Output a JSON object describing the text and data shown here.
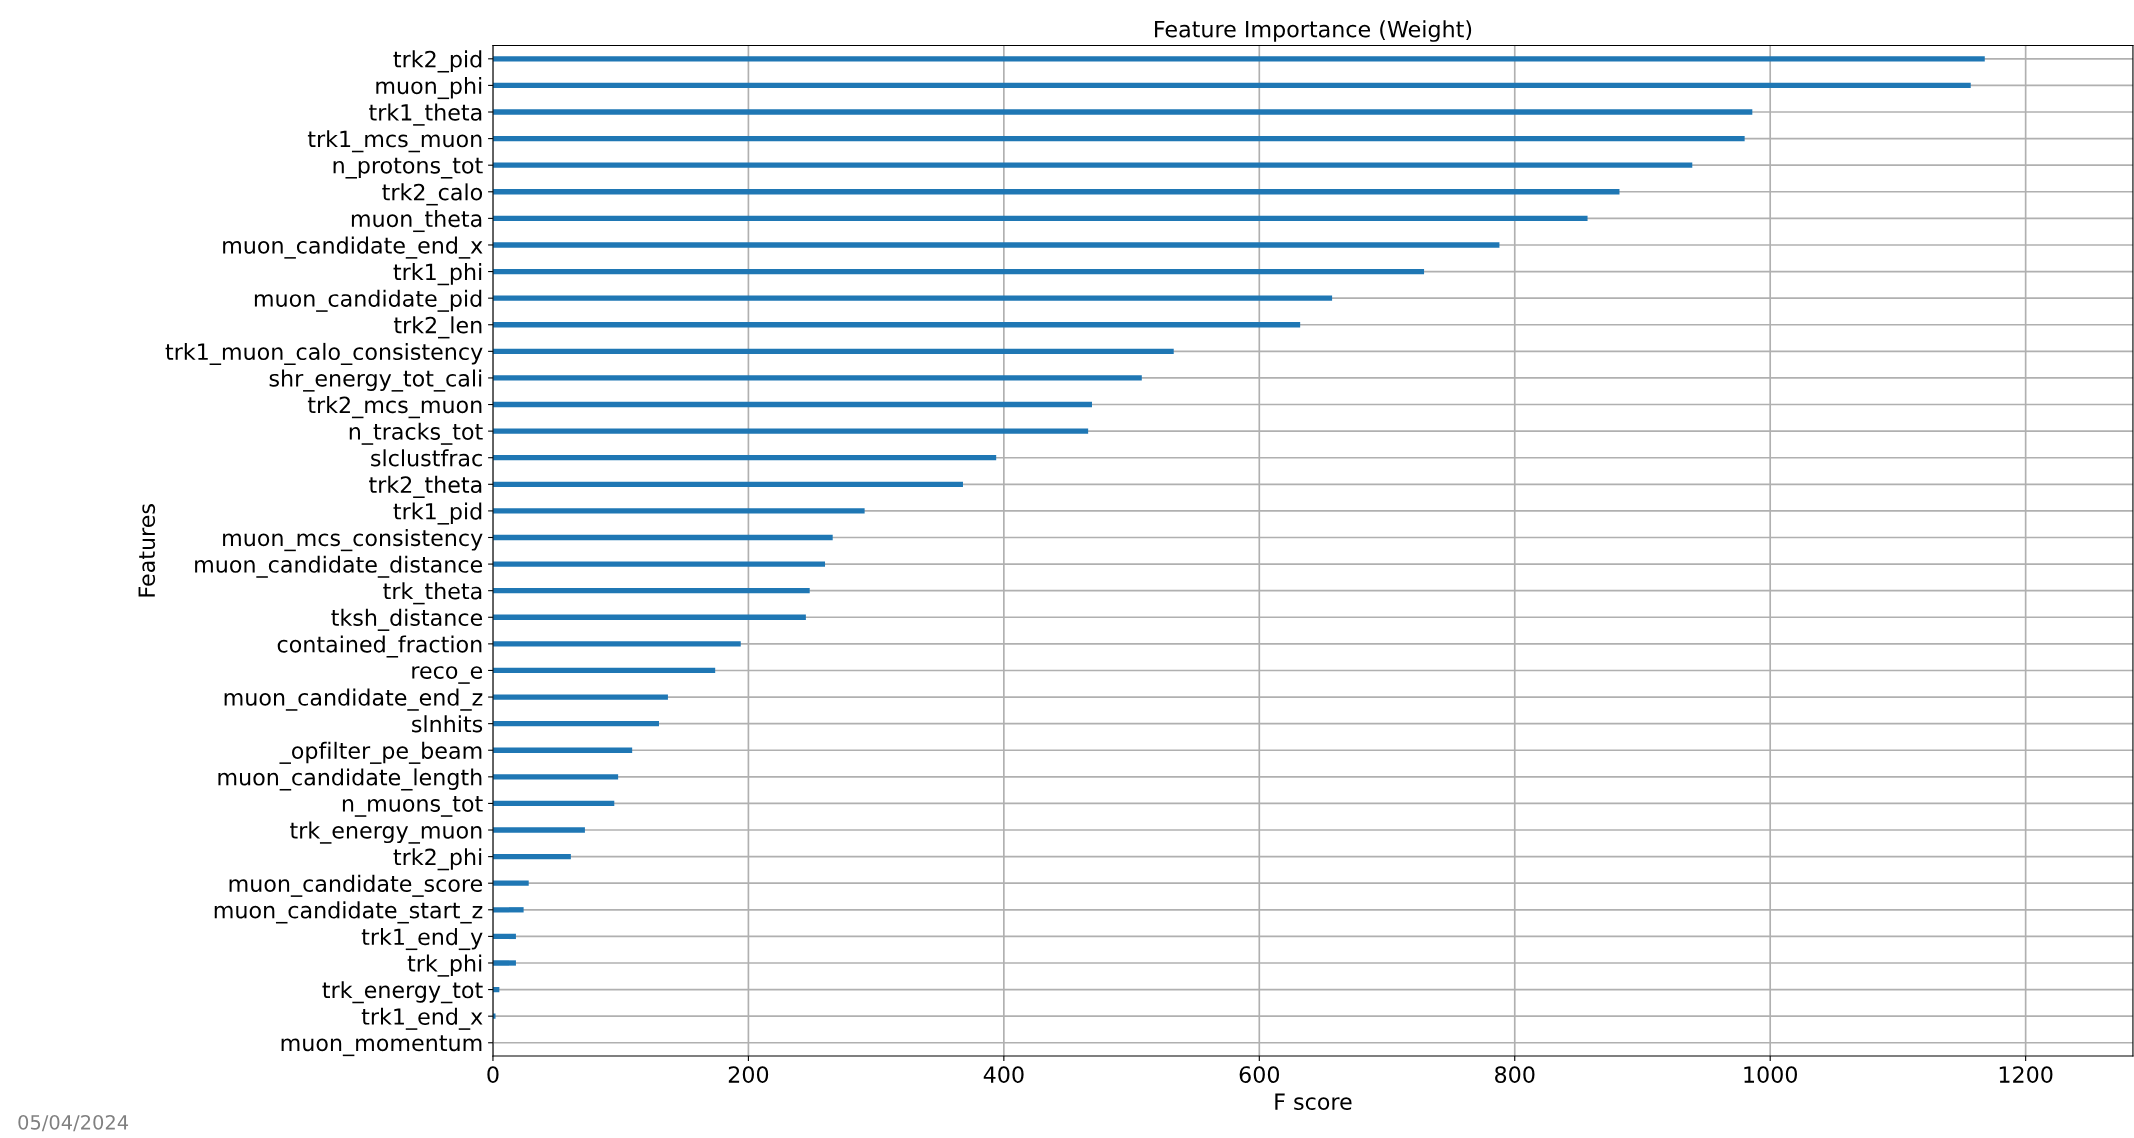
{
  "chart_data": {
    "type": "bar",
    "orientation": "horizontal",
    "title": "Feature Importance (Weight)",
    "xlabel": "F score",
    "ylabel": "Features",
    "categories": [
      "trk2_pid",
      "muon_phi",
      "trk1_theta",
      "trk1_mcs_muon",
      "n_protons_tot",
      "trk2_calo",
      "muon_theta",
      "muon_candidate_end_x",
      "trk1_phi",
      "muon_candidate_pid",
      "trk2_len",
      "trk1_muon_calo_consistency",
      "shr_energy_tot_cali",
      "trk2_mcs_muon",
      "n_tracks_tot",
      "slclustfrac",
      "trk2_theta",
      "trk1_pid",
      "muon_mcs_consistency",
      "muon_candidate_distance",
      "trk_theta",
      "tksh_distance",
      "contained_fraction",
      "reco_e",
      "muon_candidate_end_z",
      "slnhits",
      "_opfilter_pe_beam",
      "muon_candidate_length",
      "n_muons_tot",
      "trk_energy_muon",
      "trk2_phi",
      "muon_candidate_score",
      "muon_candidate_start_z",
      "trk1_end_y",
      "trk_phi",
      "trk_energy_tot",
      "trk1_end_x",
      "muon_momentum"
    ],
    "values": [
      1168,
      1157,
      986,
      980,
      939,
      882,
      857,
      788,
      729,
      657,
      632,
      533,
      508,
      469,
      466,
      394,
      368,
      291,
      266,
      260,
      248,
      245,
      194,
      174,
      137,
      130,
      109,
      98,
      95,
      72,
      61,
      28,
      24,
      18,
      18,
      5,
      2,
      null
    ],
    "color": "#1f77b4",
    "xlim": [
      0,
      1284
    ],
    "xticks": [
      0,
      200,
      400,
      600,
      800,
      1000,
      1200
    ],
    "grid": true,
    "annotations": [
      "05/04/2024"
    ]
  }
}
